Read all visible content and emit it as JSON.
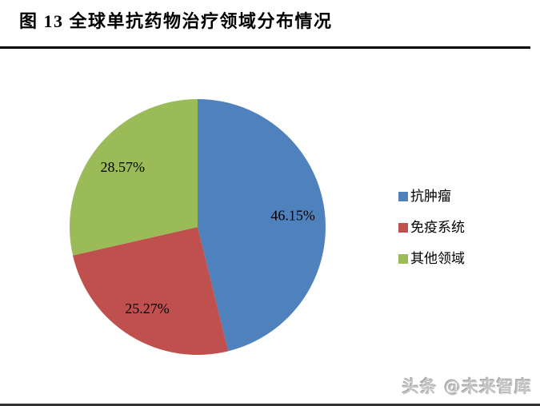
{
  "header": {
    "title": "图  13 全球单抗药物治疗领域分布情况"
  },
  "chart_data": {
    "type": "pie",
    "title": "图 13 全球单抗药物治疗领域分布情况",
    "slices": [
      {
        "label": "抗肿瘤",
        "value": 46.15,
        "display": "46.15%",
        "color": "#4F81BD"
      },
      {
        "label": "免疫系统",
        "value": 25.27,
        "display": "25.27%",
        "color": "#C0504D"
      },
      {
        "label": "其他领域",
        "value": 28.57,
        "display": "28.57%",
        "color": "#9BBB59"
      }
    ],
    "start_angle_deg": 0,
    "direction": "clockwise",
    "label_position": "inside",
    "label_radius_ratio": 0.75,
    "legend_position": "right",
    "legend_order": [
      "抗肿瘤",
      "免疫系统",
      "其他领域"
    ]
  },
  "footer": {
    "watermark": "头条 @未来智库"
  },
  "style_colors": {
    "title_rule": "#000000",
    "bottom_rule": "#333333",
    "watermark_gray": "#c4c4c4"
  }
}
